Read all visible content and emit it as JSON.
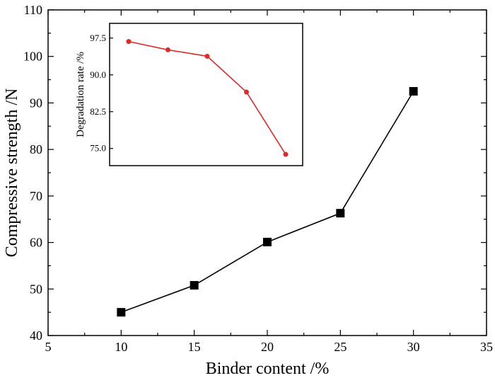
{
  "chart_data": [
    {
      "type": "line",
      "title": "",
      "xlabel": "Binder content /%",
      "ylabel": "Compressive strength /N",
      "xlim": [
        5,
        35
      ],
      "ylim": [
        40,
        110
      ],
      "xticks": [
        "5",
        "10",
        "15",
        "20",
        "25",
        "30",
        "35"
      ],
      "yticks": [
        "40",
        "50",
        "60",
        "70",
        "80",
        "90",
        "100",
        "110"
      ],
      "marker": "square",
      "series": [
        {
          "x": [
            10,
            15,
            20,
            25,
            30
          ],
          "y": [
            45,
            50.8,
            60.1,
            66.3,
            92.5
          ]
        }
      ],
      "colors": {
        "line": "#000000",
        "marker": "#000000"
      }
    },
    {
      "type": "line",
      "title": "",
      "xlabel": "",
      "ylabel": "Degradation rate /%",
      "ylim": [
        71.5,
        100.5
      ],
      "yticks": [
        "75.0",
        "82.5",
        "90.0",
        "97.5"
      ],
      "marker": "circle",
      "series": [
        {
          "x": [
            10,
            15,
            20,
            25,
            30
          ],
          "y": [
            96.8,
            95.1,
            93.8,
            86.5,
            73.8
          ]
        }
      ],
      "colors": {
        "line": "#e02a2a",
        "marker": "#e02a2a"
      }
    }
  ]
}
